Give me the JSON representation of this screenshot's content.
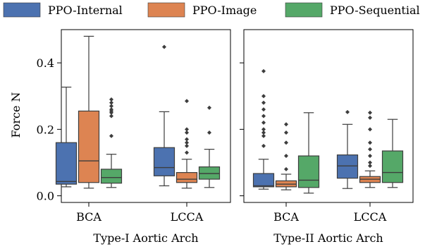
{
  "chart_data": {
    "type": "box",
    "ylabel": "Force N",
    "ylim": [
      -0.02,
      0.5
    ],
    "yticks": [
      0.0,
      0.2,
      0.4
    ],
    "ytick_labels": [
      "0.0",
      "0.2",
      "0.4"
    ],
    "legend_position": "top",
    "series": [
      {
        "name": "PPO-Internal",
        "color": "#4c72b0"
      },
      {
        "name": "PPO-Image",
        "color": "#dd8452"
      },
      {
        "name": "PPO-Sequential",
        "color": "#55a868"
      }
    ],
    "panels": [
      {
        "xlabel": "Type-I Aortic Arch",
        "categories": [
          "BCA",
          "LCCA"
        ],
        "boxes": [
          {
            "category": "BCA",
            "series": "PPO-Internal",
            "whislo": 0.027,
            "q1": 0.035,
            "med": 0.043,
            "q3": 0.16,
            "whishi": 0.327,
            "fliers": []
          },
          {
            "category": "BCA",
            "series": "PPO-Image",
            "whislo": 0.023,
            "q1": 0.04,
            "med": 0.105,
            "q3": 0.255,
            "whishi": 0.48,
            "fliers": []
          },
          {
            "category": "BCA",
            "series": "PPO-Sequential",
            "whislo": 0.025,
            "q1": 0.038,
            "med": 0.055,
            "q3": 0.08,
            "whishi": 0.125,
            "fliers": [
              0.18,
              0.24,
              0.25,
              0.255,
              0.26,
              0.27,
              0.28,
              0.29
            ]
          },
          {
            "category": "LCCA",
            "series": "PPO-Internal",
            "whislo": 0.03,
            "q1": 0.06,
            "med": 0.085,
            "q3": 0.145,
            "whishi": 0.253,
            "fliers": [
              0.448
            ]
          },
          {
            "category": "LCCA",
            "series": "PPO-Image",
            "whislo": 0.023,
            "q1": 0.04,
            "med": 0.05,
            "q3": 0.07,
            "whishi": 0.11,
            "fliers": [
              0.13,
              0.15,
              0.16,
              0.17,
              0.19,
              0.2,
              0.285
            ]
          },
          {
            "category": "LCCA",
            "series": "PPO-Sequential",
            "whislo": 0.025,
            "q1": 0.05,
            "med": 0.067,
            "q3": 0.087,
            "whishi": 0.14,
            "fliers": [
              0.19,
              0.265
            ]
          }
        ]
      },
      {
        "xlabel": "Type-II Aortic Arch",
        "categories": [
          "BCA",
          "LCCA"
        ],
        "boxes": [
          {
            "category": "BCA",
            "series": "PPO-Internal",
            "whislo": 0.02,
            "q1": 0.027,
            "med": 0.03,
            "q3": 0.067,
            "whishi": 0.11,
            "fliers": [
              0.15,
              0.18,
              0.19,
              0.2,
              0.22,
              0.24,
              0.26,
              0.28,
              0.3,
              0.375
            ]
          },
          {
            "category": "BCA",
            "series": "PPO-Image",
            "whislo": 0.018,
            "q1": 0.027,
            "med": 0.035,
            "q3": 0.045,
            "whishi": 0.065,
            "fliers": [
              0.08,
              0.12,
              0.16,
              0.19,
              0.215
            ]
          },
          {
            "category": "BCA",
            "series": "PPO-Sequential",
            "whislo": 0.008,
            "q1": 0.025,
            "med": 0.047,
            "q3": 0.12,
            "whishi": 0.25,
            "fliers": []
          },
          {
            "category": "LCCA",
            "series": "PPO-Internal",
            "whislo": 0.022,
            "q1": 0.053,
            "med": 0.09,
            "q3": 0.123,
            "whishi": 0.215,
            "fliers": [
              0.252
            ]
          },
          {
            "category": "LCCA",
            "series": "PPO-Image",
            "whislo": 0.025,
            "q1": 0.04,
            "med": 0.05,
            "q3": 0.058,
            "whishi": 0.075,
            "fliers": [
              0.09,
              0.1,
              0.12,
              0.14,
              0.16,
              0.2,
              0.235,
              0.25
            ]
          },
          {
            "category": "LCCA",
            "series": "PPO-Sequential",
            "whislo": 0.025,
            "q1": 0.04,
            "med": 0.07,
            "q3": 0.135,
            "whishi": 0.23,
            "fliers": []
          }
        ]
      }
    ]
  }
}
